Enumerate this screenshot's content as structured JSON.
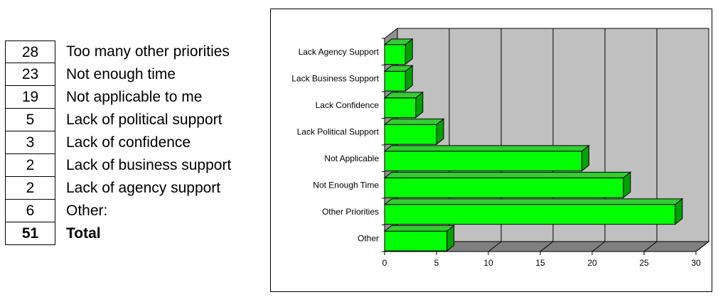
{
  "table": {
    "rows": [
      {
        "count": "28",
        "label": "Too many other priorities"
      },
      {
        "count": "23",
        "label": "Not enough time"
      },
      {
        "count": "19",
        "label": "Not applicable to me"
      },
      {
        "count": "5",
        "label": "Lack of political support"
      },
      {
        "count": "3",
        "label": "Lack of confidence"
      },
      {
        "count": "2",
        "label": "Lack of business support"
      },
      {
        "count": "2",
        "label": "Lack of agency support"
      },
      {
        "count": "6",
        "label": "Other:"
      }
    ],
    "total": {
      "count": "51",
      "label": "Total"
    }
  },
  "chart_data": {
    "type": "bar",
    "orientation": "horizontal",
    "style": "3d",
    "categories": [
      "Lack Agency Support",
      "Lack Business Support",
      "Lack Confidence",
      "Lack Political Support",
      "Not Applicable",
      "Not Enough Time",
      "Other Priorities",
      "Other"
    ],
    "values": [
      2,
      2,
      3,
      5,
      19,
      23,
      28,
      6
    ],
    "xlim": [
      0,
      30
    ],
    "xticks": [
      0,
      5,
      10,
      15,
      20,
      25,
      30
    ],
    "grid": true,
    "legend": "none",
    "colors": {
      "bar": "#00ff00",
      "bar_side": "#00a000",
      "bar_top": "#33cc33",
      "wall": "#c0c0c0",
      "floor": "#808080",
      "side_wall": "#909090"
    }
  }
}
